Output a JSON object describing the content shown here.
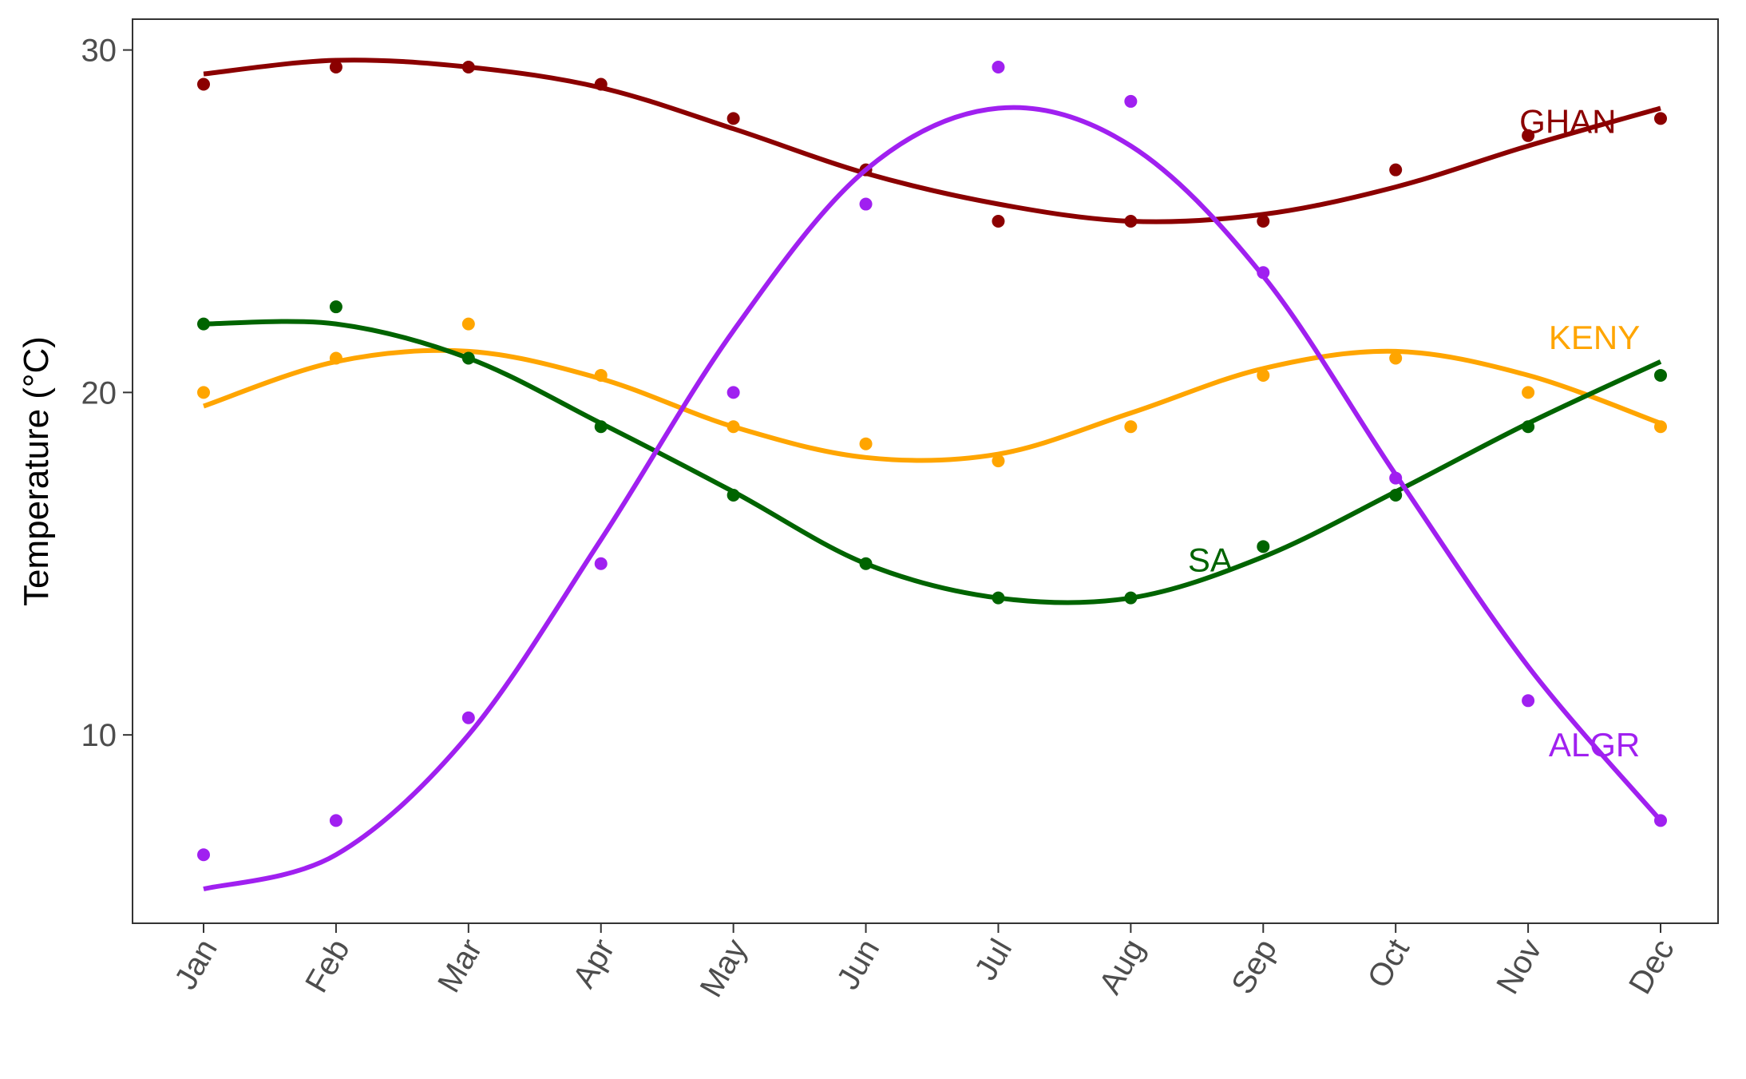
{
  "chart_data": {
    "type": "line",
    "title": "",
    "xlabel": "",
    "ylabel": "Temperature (°C)",
    "categories": [
      "Jan",
      "Feb",
      "Mar",
      "Apr",
      "May",
      "Jun",
      "Jul",
      "Aug",
      "Sep",
      "Oct",
      "Nov",
      "Dec"
    ],
    "ylim": [
      4.5,
      30.9
    ],
    "yticks": [
      10,
      20,
      30
    ],
    "grid": false,
    "legend": "none",
    "series": [
      {
        "name": "GHAN",
        "color": "#8B0000",
        "points": [
          29.0,
          29.5,
          29.5,
          29.0,
          28.0,
          26.5,
          25.0,
          25.0,
          25.0,
          26.5,
          27.5,
          28.0
        ],
        "smooth": [
          29.3,
          29.7,
          29.5,
          28.9,
          27.7,
          26.4,
          25.5,
          25.0,
          25.2,
          26.0,
          27.2,
          28.3
        ]
      },
      {
        "name": "KENY",
        "color": "#FFA500",
        "points": [
          20.0,
          21.0,
          22.0,
          20.5,
          19.0,
          18.5,
          18.0,
          19.0,
          20.5,
          21.0,
          20.0,
          19.0
        ],
        "smooth": [
          19.6,
          20.9,
          21.2,
          20.4,
          19.0,
          18.1,
          18.2,
          19.4,
          20.7,
          21.2,
          20.5,
          19.1
        ]
      },
      {
        "name": "SA",
        "color": "#006400",
        "points": [
          22.0,
          22.5,
          21.0,
          19.0,
          17.0,
          15.0,
          14.0,
          14.0,
          15.5,
          17.0,
          19.0,
          20.5
        ],
        "smooth": [
          22.0,
          22.0,
          21.0,
          19.1,
          17.1,
          15.0,
          14.0,
          14.0,
          15.2,
          17.1,
          19.1,
          20.9
        ]
      },
      {
        "name": "ALGR",
        "color": "#A020F0",
        "points": [
          6.5,
          7.5,
          10.5,
          15.0,
          20.0,
          25.5,
          29.5,
          28.5,
          23.5,
          17.5,
          11.0,
          7.5
        ],
        "smooth": [
          5.5,
          6.5,
          10.0,
          15.7,
          21.8,
          26.5,
          28.3,
          27.2,
          23.4,
          17.6,
          12.0,
          7.5
        ]
      }
    ],
    "annotations": [
      {
        "text": "GHAN",
        "color": "#8B0000",
        "x": 10.3,
        "y": 27.9
      },
      {
        "text": "KENY",
        "color": "#FFA500",
        "x": 10.5,
        "y": 21.6
      },
      {
        "text": "SA",
        "color": "#006400",
        "x": 7.6,
        "y": 15.1
      },
      {
        "text": "ALGR",
        "color": "#A020F0",
        "x": 10.5,
        "y": 9.7
      }
    ]
  }
}
